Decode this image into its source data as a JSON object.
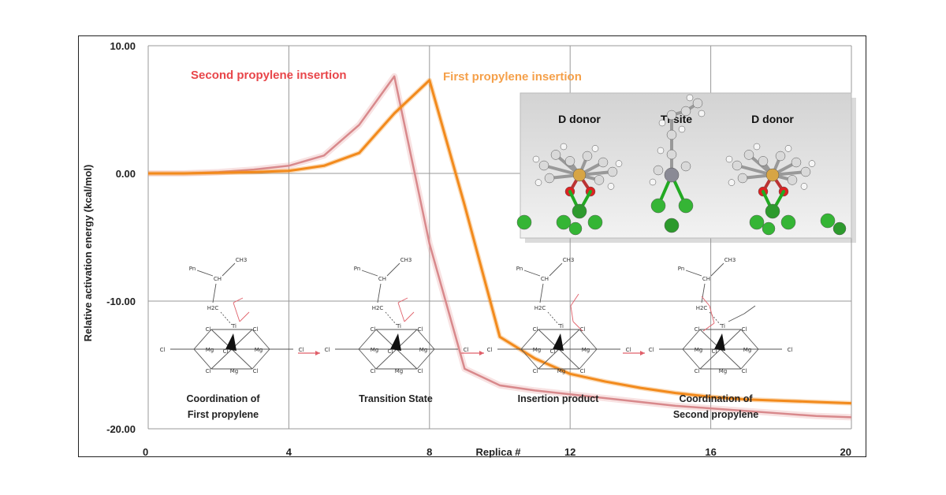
{
  "chart_data": {
    "type": "line",
    "xlabel": "Replica #",
    "ylabel": "Relative activation energy (kcal/mol)",
    "xlim": [
      0,
      20
    ],
    "ylim": [
      -20,
      10
    ],
    "x_ticks": [
      "0",
      "4",
      "8",
      "12",
      "16",
      "20"
    ],
    "y_ticks": [
      "10.00",
      "0.00",
      "-10.00",
      "-20.00"
    ],
    "grid": true,
    "series": [
      {
        "name": "Second propylene insertion",
        "color": "#e8a0a0",
        "x": [
          0,
          1,
          2,
          3,
          4,
          5,
          6,
          7,
          8,
          9,
          10,
          11,
          12,
          13,
          14,
          15,
          16,
          17,
          18,
          19,
          20
        ],
        "y": [
          0.0,
          0.0,
          0.1,
          0.3,
          0.6,
          1.4,
          3.8,
          7.6,
          -5.5,
          -15.3,
          -16.6,
          -17.0,
          -17.3,
          -17.6,
          -17.9,
          -18.2,
          -18.4,
          -18.6,
          -18.8,
          -19.0,
          -19.1
        ]
      },
      {
        "name": "First propylene insertion",
        "color": "#f28a1c",
        "x": [
          0,
          1,
          2,
          3,
          4,
          5,
          6,
          7,
          8,
          9,
          10,
          11,
          12,
          13,
          14,
          15,
          16,
          17,
          18,
          19,
          20
        ],
        "y": [
          0.0,
          0.0,
          0.05,
          0.1,
          0.2,
          0.6,
          1.6,
          4.7,
          7.3,
          -2.5,
          -12.8,
          -14.5,
          -15.7,
          -16.3,
          -16.8,
          -17.2,
          -17.5,
          -17.7,
          -17.8,
          -17.9,
          -18.0
        ]
      }
    ],
    "stages": [
      {
        "line1": "Coordination of",
        "line2": "First propylene"
      },
      {
        "line1": "Transition State",
        "line2": ""
      },
      {
        "line1": "Insertion product",
        "line2": ""
      },
      {
        "line1": "Coordination of",
        "line2": "Second propylene"
      }
    ],
    "inset": {
      "labels": [
        "D donor",
        "Ti site",
        "D donor"
      ]
    },
    "chem_atoms": {
      "mg": "Mg",
      "cl": "Cl",
      "ti": "Ti",
      "ch3": "CH3",
      "ch": "CH",
      "pn": "Pn",
      "h2c": "H2C"
    }
  }
}
